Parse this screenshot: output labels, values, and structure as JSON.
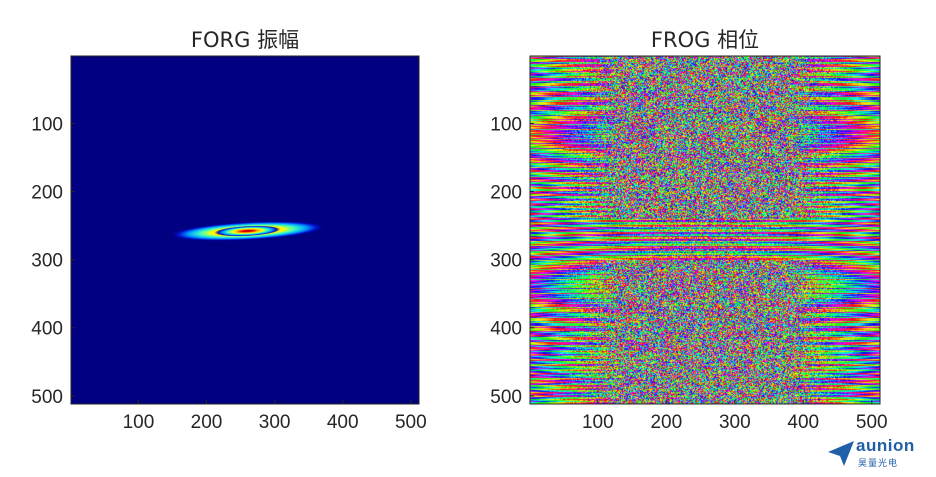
{
  "colors": {
    "background": "#000080",
    "axis": "#262626",
    "logo": "#1f5fa8"
  },
  "logo": {
    "name": "aunion",
    "subtitle": "昊量光电"
  },
  "chart_data": [
    {
      "type": "heatmap",
      "title": "FORG 振幅",
      "colormap": "jet",
      "xlim": [
        1,
        512
      ],
      "ylim": [
        512,
        1
      ],
      "x_ticks": [
        100,
        200,
        300,
        400,
        500
      ],
      "y_ticks": [
        100,
        200,
        300,
        400,
        500
      ],
      "x_tick_labels": [
        "100",
        "200",
        "300",
        "400",
        "500"
      ],
      "y_tick_labels": [
        "100",
        "200",
        "300",
        "400",
        "500"
      ],
      "features": [
        {
          "shape": "ellipse",
          "center": [
            260,
            258
          ],
          "extent_x": [
            140,
            370
          ],
          "extent_y": [
            245,
            272
          ],
          "peak": 1.0,
          "tilt": "slightly rising to the right"
        }
      ],
      "grid": false
    },
    {
      "type": "heatmap",
      "title": "FROG 相位",
      "colormap": "hsv",
      "xlim": [
        1,
        512
      ],
      "ylim": [
        512,
        1
      ],
      "x_ticks": [
        100,
        200,
        300,
        400,
        500
      ],
      "y_ticks": [
        100,
        200,
        300,
        400,
        500
      ],
      "x_tick_labels": [
        "100",
        "200",
        "300",
        "400",
        "500"
      ],
      "y_tick_labels": [
        "100",
        "200",
        "300",
        "400",
        "500"
      ],
      "features": [
        {
          "shape": "horizontal fringes",
          "note": "wrapped phase, noisy center columns"
        },
        {
          "shape": "smooth fringe band",
          "rows": [
            245,
            300
          ]
        }
      ],
      "grid": false
    }
  ]
}
